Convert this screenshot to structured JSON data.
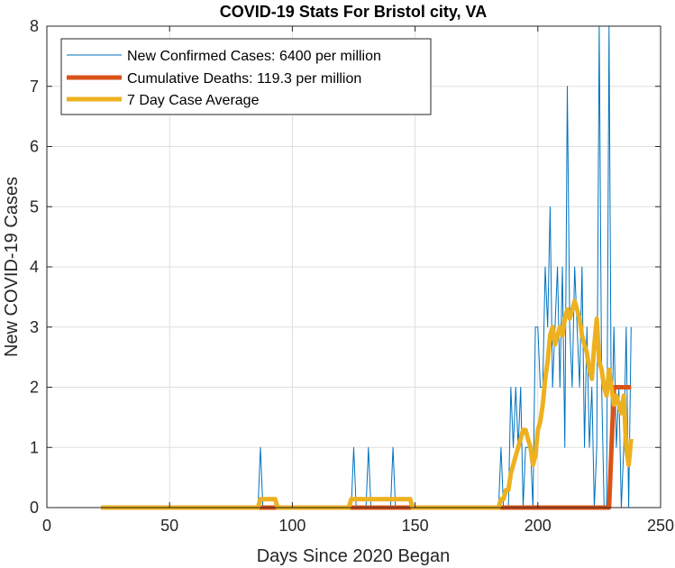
{
  "chart_data": {
    "type": "line",
    "title": "COVID-19 Stats For Bristol city, VA",
    "xlabel": "Days Since 2020 Began",
    "ylabel": "New COVID-19 Cases",
    "xlim": [
      0,
      250
    ],
    "ylim": [
      0,
      8
    ],
    "x_ticks": [
      0,
      50,
      100,
      150,
      200,
      250
    ],
    "y_ticks": [
      0,
      1,
      2,
      3,
      4,
      5,
      6,
      7,
      8
    ],
    "grid": true,
    "legend_location": "top-left",
    "series": [
      {
        "name": "New Confirmed Cases: 6400 per million",
        "color": "#0072BD",
        "line_weight": "thin",
        "x": [
          22,
          50,
          86,
          87,
          88,
          89,
          100,
          124,
          125,
          126,
          130,
          131,
          132,
          140,
          141,
          142,
          150,
          184,
          185,
          186,
          188,
          189,
          190,
          191,
          192,
          193,
          194,
          195,
          196,
          197,
          198,
          199,
          200,
          201,
          202,
          203,
          204,
          205,
          206,
          207,
          208,
          209,
          210,
          211,
          212,
          213,
          214,
          215,
          216,
          217,
          218,
          219,
          220,
          221,
          222,
          223,
          224,
          225,
          226,
          227,
          228,
          229,
          230,
          231,
          232,
          233,
          234,
          235,
          236,
          237,
          238
        ],
        "y": [
          0,
          0,
          0,
          1,
          0,
          0,
          0,
          0,
          1,
          0,
          0,
          1,
          0,
          0,
          1,
          0,
          0,
          0,
          1,
          0,
          0,
          2,
          1,
          2,
          1,
          2,
          0,
          1,
          1,
          1,
          0,
          3,
          3,
          2,
          2,
          4,
          3,
          5,
          2,
          3,
          4,
          2,
          4,
          1,
          7,
          3,
          2,
          4,
          3,
          2,
          4,
          1,
          3,
          1,
          2,
          0,
          1,
          8,
          2,
          0,
          0,
          8,
          1,
          3,
          1,
          2,
          0,
          1,
          3,
          0,
          3
        ]
      },
      {
        "name": "Cumulative Deaths: 119.3 per million",
        "color": "#D95319",
        "line_weight": "thick",
        "x": [
          22,
          228,
          229,
          230,
          231,
          238
        ],
        "y": [
          0,
          0,
          0,
          1,
          2,
          2
        ]
      },
      {
        "name": "7 Day Case Average",
        "color": "#EDB120",
        "line_weight": "thick",
        "x": [
          22,
          86,
          87,
          88,
          89,
          90,
          91,
          92,
          93,
          94,
          123,
          124,
          125,
          126,
          127,
          128,
          129,
          130,
          131,
          132,
          133,
          134,
          135,
          136,
          137,
          138,
          139,
          140,
          141,
          142,
          143,
          144,
          145,
          146,
          147,
          148,
          149,
          184,
          185,
          186,
          187,
          188,
          189,
          190,
          191,
          192,
          193,
          194,
          195,
          196,
          197,
          198,
          199,
          200,
          201,
          202,
          203,
          204,
          205,
          206,
          207,
          208,
          209,
          210,
          211,
          212,
          213,
          214,
          215,
          216,
          217,
          218,
          219,
          220,
          221,
          222,
          223,
          224,
          225,
          226,
          227,
          228,
          229,
          230,
          231,
          232,
          233,
          234,
          235,
          236,
          237,
          238
        ],
        "y": [
          0,
          0,
          0.14,
          0.14,
          0.14,
          0.14,
          0.14,
          0.14,
          0.14,
          0,
          0,
          0.14,
          0.14,
          0.14,
          0.14,
          0.14,
          0.14,
          0.14,
          0.14,
          0.14,
          0.14,
          0.14,
          0.14,
          0.14,
          0.14,
          0.14,
          0.14,
          0.14,
          0.14,
          0.14,
          0.14,
          0.14,
          0.14,
          0.14,
          0.14,
          0.14,
          0,
          0,
          0.14,
          0.14,
          0.29,
          0.29,
          0.57,
          0.71,
          0.86,
          1,
          1.14,
          1.29,
          1.29,
          1.14,
          1,
          0.71,
          0.86,
          1.29,
          1.43,
          1.71,
          2.14,
          2.43,
          2.86,
          3,
          2.71,
          2.86,
          3,
          2.86,
          3.14,
          3.29,
          3.14,
          3.29,
          3.43,
          3.29,
          3.14,
          2.86,
          2.71,
          2.57,
          2.29,
          2.14,
          2.71,
          3.14,
          2.43,
          2.29,
          2,
          1.86,
          2.29,
          2,
          1.71,
          1.86,
          1.71,
          1.57,
          1.86,
          1,
          0.71,
          1.14
        ]
      }
    ]
  }
}
